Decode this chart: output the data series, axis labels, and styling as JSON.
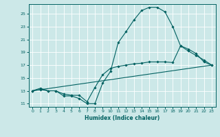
{
  "xlabel": "Humidex (Indice chaleur)",
  "bg_color": "#cce8e8",
  "grid_color": "#ffffff",
  "line_color": "#006060",
  "xlim": [
    -0.5,
    23.5
  ],
  "ylim": [
    10.5,
    26.5
  ],
  "yticks": [
    11,
    13,
    15,
    17,
    19,
    21,
    23,
    25
  ],
  "xticks": [
    0,
    1,
    2,
    3,
    4,
    5,
    6,
    7,
    8,
    9,
    10,
    11,
    12,
    13,
    14,
    15,
    16,
    17,
    18,
    19,
    20,
    21,
    22,
    23
  ],
  "lines": [
    {
      "x": [
        0,
        1,
        2,
        3,
        4,
        5,
        6,
        7,
        8,
        9,
        10,
        11,
        12,
        13,
        14,
        15,
        16,
        17,
        18,
        19,
        20,
        21,
        22,
        23
      ],
      "y": [
        13,
        13.4,
        13,
        13,
        12.2,
        12.2,
        11.8,
        11.0,
        11.0,
        14.2,
        16.0,
        20.5,
        22.2,
        24.0,
        25.5,
        26.0,
        26.0,
        25.3,
        23.0,
        20.0,
        19.5,
        18.8,
        17.5,
        17.0
      ],
      "marker": true
    },
    {
      "x": [
        0,
        1,
        2,
        3,
        4,
        5,
        6,
        7,
        8,
        9,
        10,
        11,
        12,
        13,
        14,
        15,
        16,
        17,
        18,
        19,
        20,
        21,
        22,
        23
      ],
      "y": [
        13,
        13.2,
        13,
        13,
        12.5,
        12.3,
        12.3,
        11.3,
        13.5,
        15.5,
        16.5,
        16.8,
        17.0,
        17.2,
        17.3,
        17.5,
        17.5,
        17.5,
        17.4,
        20.0,
        19.2,
        18.5,
        17.8,
        17.0
      ],
      "marker": true
    },
    {
      "x": [
        0,
        23
      ],
      "y": [
        13,
        17.0
      ],
      "marker": false
    }
  ]
}
